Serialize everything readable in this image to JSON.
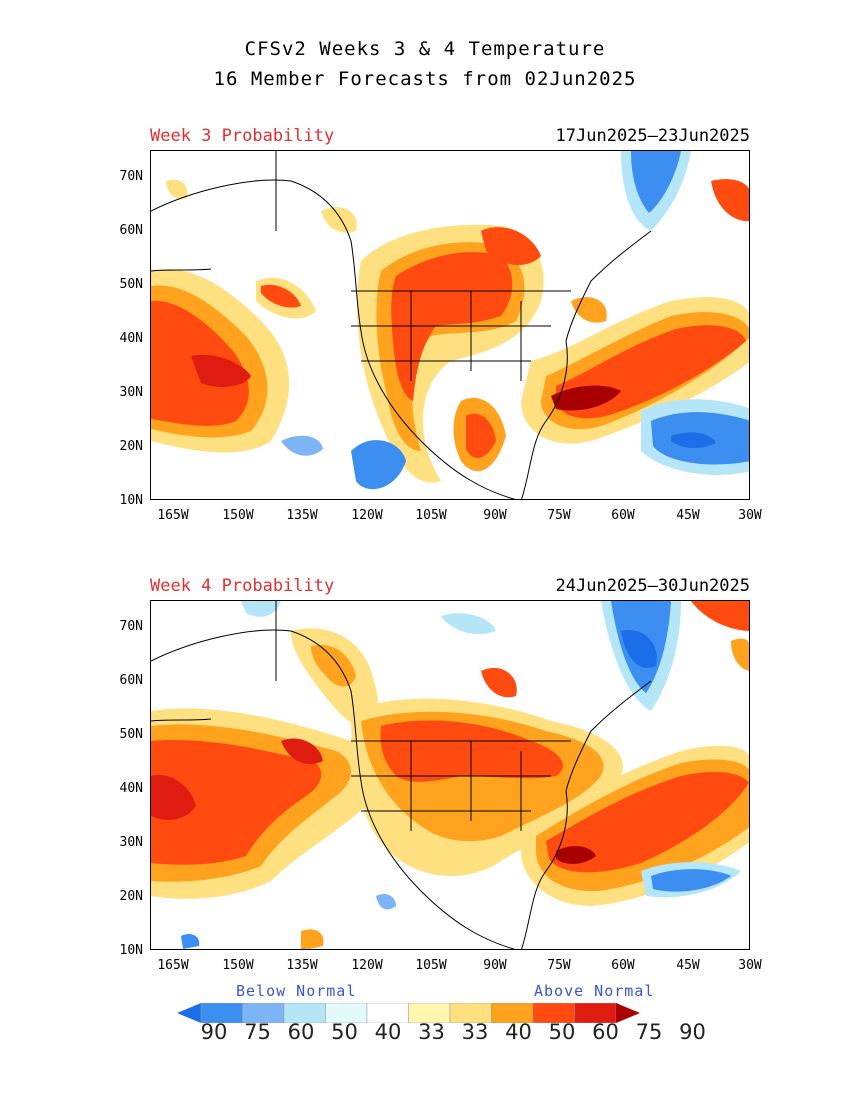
{
  "header": {
    "line1": "CFSv2 Weeks 3 & 4 Temperature",
    "line2": "16 Member Forecasts from 02Jun2025"
  },
  "panels": [
    {
      "label": "Week 3 Probability",
      "dates": "17Jun2025—23Jun2025"
    },
    {
      "label": "Week 4 Probability",
      "dates": "24Jun2025—30Jun2025"
    }
  ],
  "axes": {
    "lat_labels": [
      "70N",
      "60N",
      "50N",
      "40N",
      "30N",
      "20N",
      "10N"
    ],
    "lon_labels": [
      "165W",
      "150W",
      "135W",
      "120W",
      "105W",
      "90W",
      "75W",
      "60W",
      "45W",
      "30W"
    ],
    "lat_range": [
      10,
      75
    ],
    "lon_range": [
      -170,
      -30
    ]
  },
  "legend": {
    "below_label": "Below Normal",
    "above_label": "Above Normal",
    "values": [
      "90",
      "75",
      "60",
      "50",
      "40",
      "33",
      "33",
      "40",
      "50",
      "60",
      "75",
      "90"
    ],
    "colors": [
      "#1c6ee8",
      "#3c8ef0",
      "#7cb4f5",
      "#b4e6f8",
      "#e2fafa",
      "#ffffff",
      "#fff7b0",
      "#ffe080",
      "#ffa21e",
      "#ff4a10",
      "#e01c10",
      "#a80000"
    ]
  }
}
